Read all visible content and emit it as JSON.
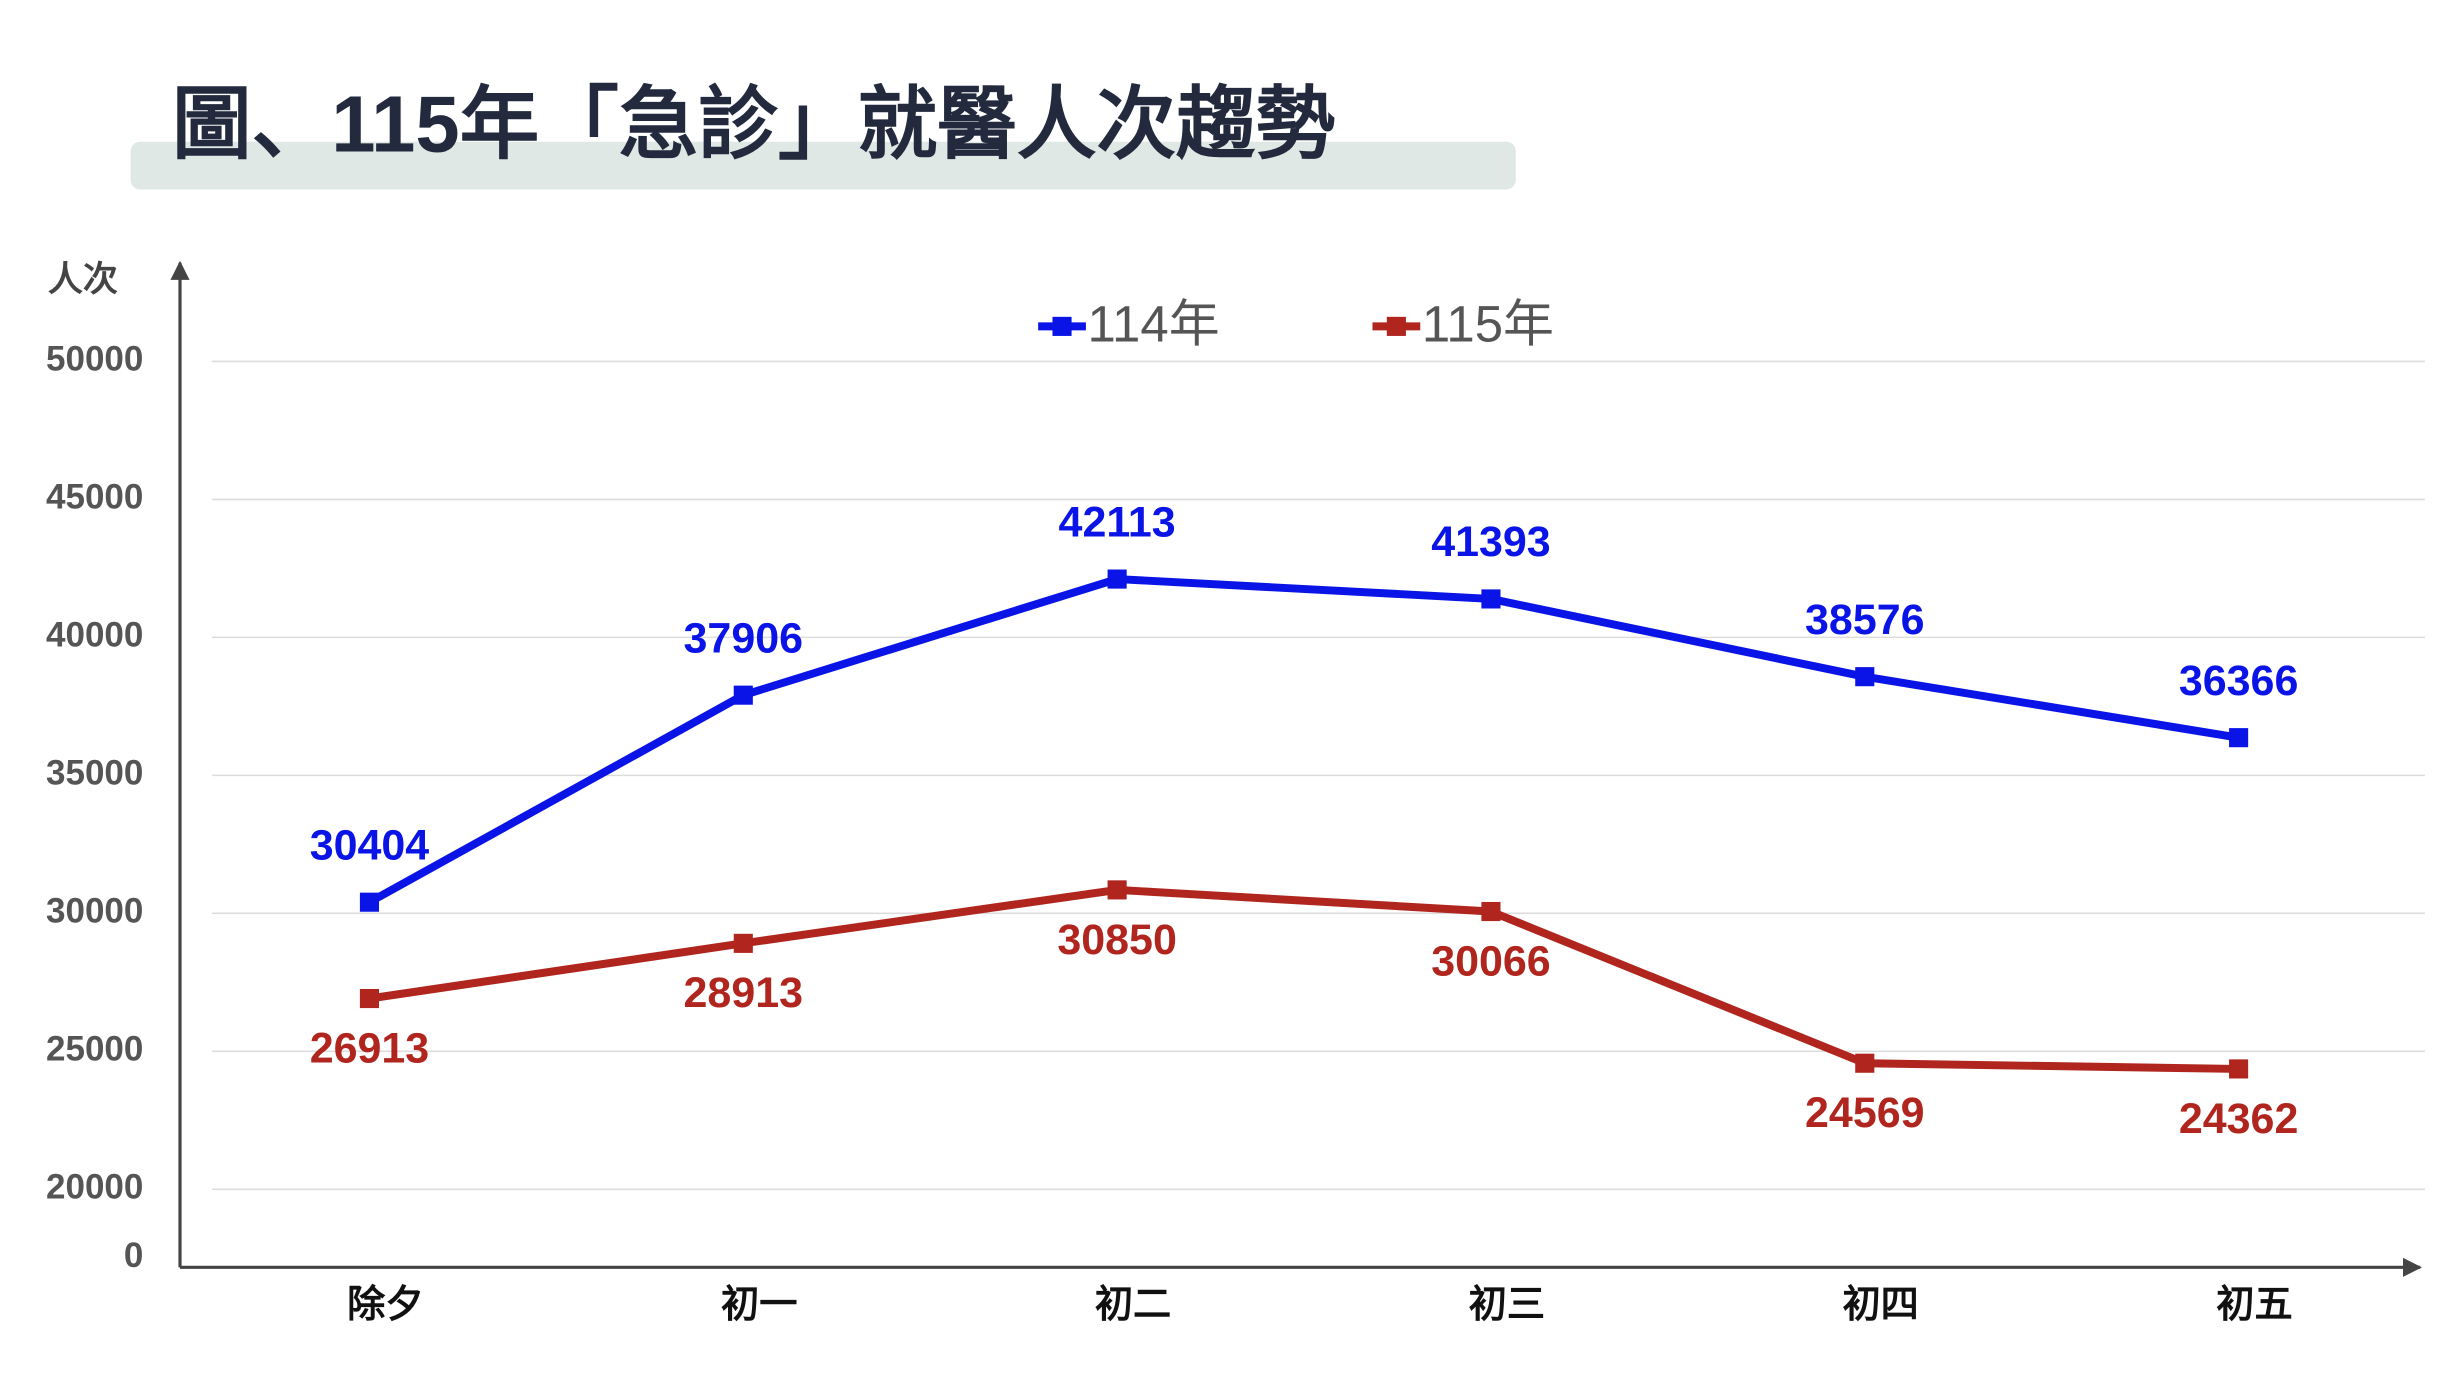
{
  "chart_data": {
    "type": "line",
    "title": "圖、115年「急診」就醫人次趨勢",
    "y_label": "人次",
    "categories": [
      "除夕",
      "初一",
      "初二",
      "初三",
      "初四",
      "初五"
    ],
    "series": [
      {
        "name": "114年",
        "color": "#0a14e6",
        "values": [
          30404,
          37906,
          42113,
          41393,
          38576,
          36366
        ]
      },
      {
        "name": "115年",
        "color": "#b0261e",
        "values": [
          26913,
          28913,
          30850,
          30066,
          24569,
          24362
        ]
      }
    ],
    "ylim": [
      20000,
      50000
    ],
    "yticks": [
      0,
      20000,
      25000,
      30000,
      35000,
      40000,
      45000,
      50000
    ],
    "axis_break": true,
    "grid": true,
    "legend": "top"
  }
}
